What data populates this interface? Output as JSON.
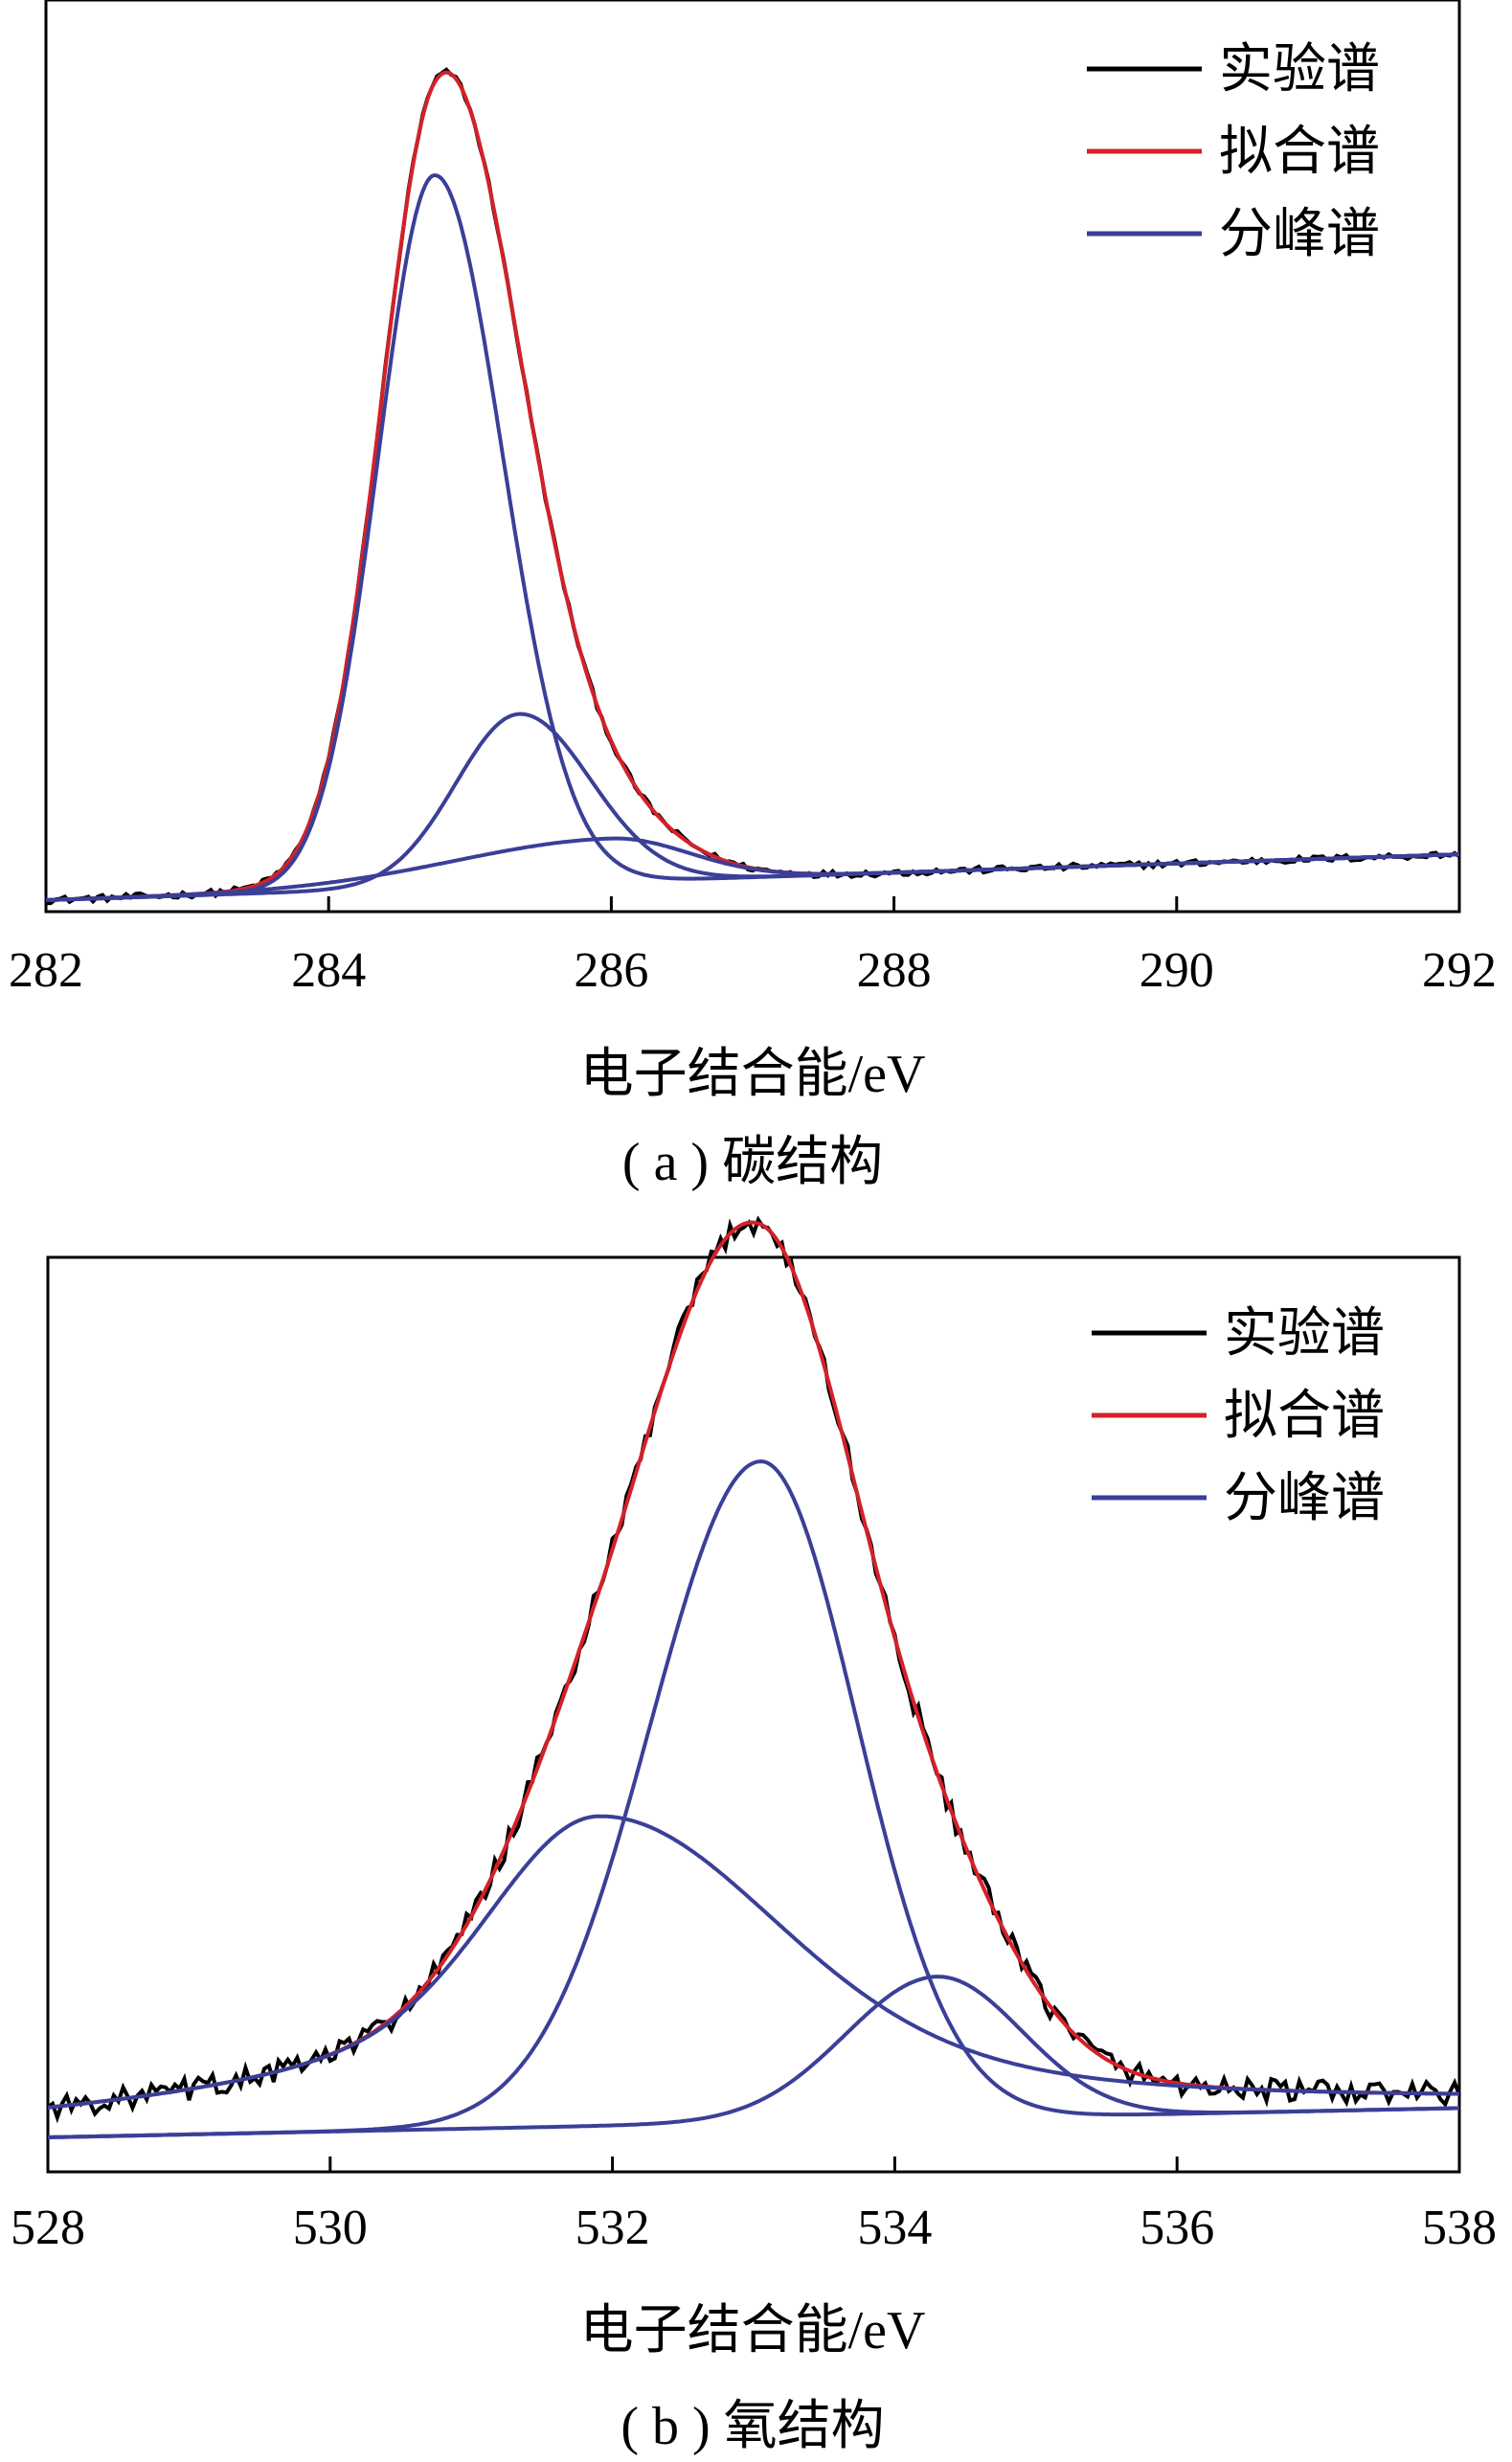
{
  "chart_data": [
    {
      "type": "line",
      "caption": "( a ) 碳结构",
      "xlabel": "电子结合能/eV",
      "ylabel": "",
      "xlim": [
        282,
        292
      ],
      "xticks": [
        "282",
        "284",
        "286",
        "288",
        "290",
        "292"
      ],
      "yticks": false,
      "legend": {
        "placement": "top-right",
        "entries": [
          "实验谱",
          "拟合谱",
          "分峰谱"
        ]
      },
      "colors": {
        "实验谱": "#000000",
        "拟合谱": "#d42129",
        "分峰谱": "#3a3f98"
      },
      "baseline": {
        "start": 0.0,
        "end": 0.055
      },
      "noise": 0.004,
      "components": [
        {
          "center": 284.75,
          "height": 0.855,
          "sigma_left": 0.4,
          "sigma_right": 0.48
        },
        {
          "center": 285.35,
          "height": 0.205,
          "sigma_left": 0.45,
          "sigma_right": 0.5
        },
        {
          "center": 286.0,
          "height": 0.052,
          "sigma_left": 1.1,
          "sigma_right": 0.55
        }
      ]
    },
    {
      "type": "line",
      "caption": "( b ) 氧结构",
      "xlabel": "电子结合能/eV",
      "ylabel": "",
      "xlim": [
        528,
        538
      ],
      "xticks": [
        "528",
        "530",
        "532",
        "534",
        "536",
        "538"
      ],
      "yticks": false,
      "legend": {
        "placement": "top-right",
        "entries": [
          "实验谱",
          "拟合谱",
          "分峰谱"
        ]
      },
      "colors": {
        "实验谱": "#000000",
        "拟合谱": "#d42129",
        "分峰谱": "#3a3f98"
      },
      "baseline": {
        "start": 0.0,
        "end": 0.035
      },
      "noise": 0.014,
      "components": [
        {
          "center": 531.9,
          "height": 0.37,
          "sigma_left": 0.72,
          "sigma_right": 1.2,
          "tail": 2.2
        },
        {
          "center": 533.05,
          "height": 0.79,
          "sigma_left": 0.78,
          "sigma_right": 0.68
        },
        {
          "center": 534.3,
          "height": 0.17,
          "sigma_left": 0.65,
          "sigma_right": 0.6
        }
      ]
    }
  ]
}
